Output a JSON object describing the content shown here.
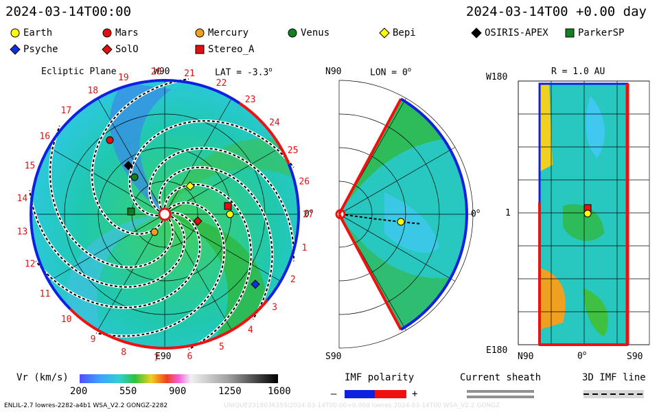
{
  "header": {
    "left_time": "2024-03-14T00:00",
    "right_time": "2024-03-14T00 +0.00 day"
  },
  "legend": [
    {
      "name": "Earth",
      "shape": "circle",
      "color": "#ffff00"
    },
    {
      "name": "Mars",
      "shape": "circle",
      "color": "#e01010"
    },
    {
      "name": "Mercury",
      "shape": "circle",
      "color": "#f0a020"
    },
    {
      "name": "Venus",
      "shape": "circle",
      "color": "#108020"
    },
    {
      "name": "Bepi",
      "shape": "diamond",
      "color": "#ffff00"
    },
    {
      "name": "OSIRIS-APEX",
      "shape": "diamond",
      "color": "#000000"
    },
    {
      "name": "ParkerSP",
      "shape": "square",
      "color": "#108020"
    },
    {
      "name": "Psyche",
      "shape": "diamond",
      "color": "#1030e0"
    },
    {
      "name": "SolO",
      "shape": "diamond",
      "color": "#e01010"
    },
    {
      "name": "Stereo_A",
      "shape": "square",
      "color": "#e01010"
    }
  ],
  "panel1": {
    "title": "Ecliptic Plane",
    "lat": "LAT = -3.3",
    "lat_deg": "o",
    "top_label": "W90",
    "bottom_label": "E90",
    "right_label": "0",
    "right_deg": "o",
    "carrington_ticks": [
      "1",
      "2",
      "3",
      "4",
      "5",
      "6",
      "7",
      "8",
      "9",
      "10",
      "11",
      "12",
      "13",
      "14",
      "15",
      "16",
      "17",
      "18",
      "19",
      "20",
      "21",
      "22",
      "23",
      "24",
      "25",
      "26",
      "27"
    ]
  },
  "panel2": {
    "top_left": "N90",
    "lon": "LON = 0",
    "lon_deg": "o",
    "right_label": "0",
    "right_deg": "o",
    "bottom_left": "S90"
  },
  "panel3": {
    "top_left": "W180",
    "r_label": "R = 1.0 AU",
    "mid_left": "1",
    "bottom_left": "E180",
    "bottom_n": "N90",
    "bottom_mid": "0",
    "bottom_mid_deg": "o",
    "bottom_s": "S90"
  },
  "colorbar": {
    "label": "Vr (km/s)",
    "ticks": [
      "200",
      "550",
      "900",
      "1250",
      "1600"
    ],
    "min": 200,
    "max": 1600
  },
  "imf": {
    "label": "IMF polarity",
    "minus": "–",
    "plus": "+",
    "neg_color": "#1020e0",
    "pos_color": "#f01010"
  },
  "current_sheath": {
    "label": "Current sheath"
  },
  "imf_line": {
    "label": "3D IMF line"
  },
  "footer": {
    "left": "ENLIL-2.7 lowres-2282-a4b1 WSA_V2.2 GONGZ-2282",
    "right": "UNIQUE2318036359/2024-03-14T00:00+0.00d  lowres  2024-03-14T00  WSA_V2.2 GONGZ"
  }
}
